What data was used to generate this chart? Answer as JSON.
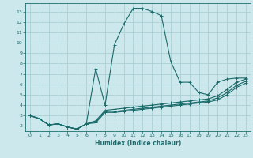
{
  "xlabel": "Humidex (Indice chaleur)",
  "bg_color": "#cce8ec",
  "line_color": "#1a6b6b",
  "grid_color": "#aacfd4",
  "xlim": [
    -0.5,
    23.5
  ],
  "ylim": [
    1.5,
    13.8
  ],
  "xticks": [
    0,
    1,
    2,
    3,
    4,
    5,
    6,
    7,
    8,
    9,
    10,
    11,
    12,
    13,
    14,
    15,
    16,
    17,
    18,
    19,
    20,
    21,
    22,
    23
  ],
  "yticks": [
    2,
    3,
    4,
    5,
    6,
    7,
    8,
    9,
    10,
    11,
    12,
    13
  ],
  "curves": [
    {
      "x": [
        0,
        1,
        2,
        3,
        4,
        5,
        6,
        7,
        8,
        9,
        10,
        11,
        12,
        13,
        14,
        15,
        16,
        17,
        18,
        19,
        20,
        21,
        22,
        23
      ],
      "y": [
        3.0,
        2.7,
        2.1,
        2.2,
        1.9,
        1.7,
        2.2,
        7.5,
        4.0,
        9.8,
        11.8,
        13.3,
        13.3,
        13.0,
        12.6,
        8.2,
        6.2,
        6.2,
        5.2,
        5.0,
        6.2,
        6.5,
        6.6,
        6.6
      ]
    },
    {
      "x": [
        0,
        1,
        2,
        3,
        4,
        5,
        6,
        7,
        8,
        9,
        10,
        11,
        12,
        13,
        14,
        15,
        16,
        17,
        18,
        19,
        20,
        21,
        22,
        23
      ],
      "y": [
        3.0,
        2.7,
        2.1,
        2.2,
        1.9,
        1.7,
        2.2,
        2.5,
        3.5,
        3.6,
        3.7,
        3.8,
        3.9,
        4.0,
        4.1,
        4.2,
        4.3,
        4.4,
        4.5,
        4.6,
        4.9,
        5.5,
        6.2,
        6.5
      ]
    },
    {
      "x": [
        0,
        1,
        2,
        3,
        4,
        5,
        6,
        7,
        8,
        9,
        10,
        11,
        12,
        13,
        14,
        15,
        16,
        17,
        18,
        19,
        20,
        21,
        22,
        23
      ],
      "y": [
        3.0,
        2.7,
        2.1,
        2.2,
        1.9,
        1.7,
        2.2,
        2.4,
        3.4,
        3.4,
        3.5,
        3.6,
        3.7,
        3.8,
        3.9,
        4.0,
        4.1,
        4.2,
        4.3,
        4.4,
        4.7,
        5.2,
        5.9,
        6.3
      ]
    },
    {
      "x": [
        0,
        1,
        2,
        3,
        4,
        5,
        6,
        7,
        8,
        9,
        10,
        11,
        12,
        13,
        14,
        15,
        16,
        17,
        18,
        19,
        20,
        21,
        22,
        23
      ],
      "y": [
        3.0,
        2.7,
        2.1,
        2.2,
        1.9,
        1.7,
        2.2,
        2.3,
        3.3,
        3.3,
        3.4,
        3.5,
        3.6,
        3.7,
        3.8,
        3.9,
        4.0,
        4.1,
        4.2,
        4.3,
        4.5,
        5.0,
        5.7,
        6.1
      ]
    }
  ]
}
